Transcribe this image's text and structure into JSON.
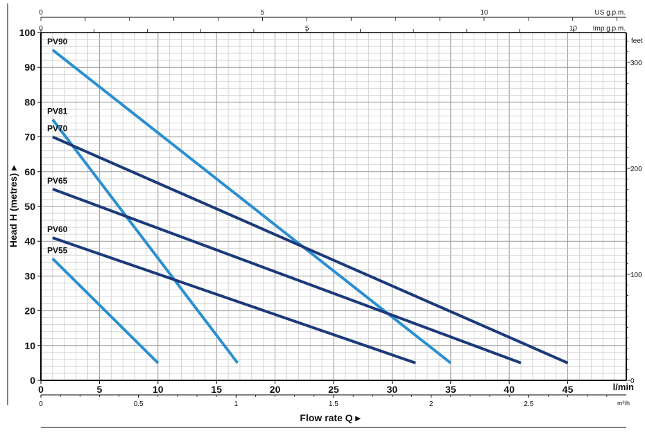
{
  "chart_data": {
    "type": "line",
    "ylabel": "Head H (metres) ▸",
    "xlabel": "Flow rate Q ▸",
    "x_unit": "l/min",
    "secondary_x_unit": "m³/h",
    "secondary_y_unit": "feet",
    "top_axis_1_label": "US g.p.m.",
    "top_axis_2_label": "Imp g.p.m.",
    "xlim": [
      0,
      50
    ],
    "ylim": [
      0,
      100
    ],
    "x_ticks": [
      0,
      5,
      10,
      15,
      20,
      25,
      30,
      35,
      40,
      45
    ],
    "x_tick_labels": [
      "0",
      "5",
      "10",
      "15",
      "20",
      "25",
      "30",
      "35",
      "40",
      "45"
    ],
    "y_ticks": [
      0,
      10,
      20,
      30,
      40,
      50,
      60,
      70,
      80,
      90,
      100
    ],
    "y_tick_labels": [
      "0",
      "10",
      "20",
      "30",
      "40",
      "50",
      "60",
      "70",
      "80",
      "90",
      "100"
    ],
    "m3h_ticks": [
      0,
      0.5,
      1,
      1.5,
      2,
      2.5
    ],
    "m3h_tick_labels": [
      "0",
      "0.5",
      "1",
      "1.5",
      "2",
      "2.5"
    ],
    "usgpm_ticks": [
      0,
      5,
      10
    ],
    "usgpm_tick_labels": [
      "0",
      "5",
      "10"
    ],
    "impgpm_ticks": [
      0,
      5,
      10
    ],
    "impgpm_tick_labels": [
      "0",
      "5",
      "10"
    ],
    "feet_ticks": [
      0,
      100,
      200,
      300
    ],
    "feet_tick_labels": [
      "0",
      "100",
      "200",
      "300"
    ],
    "grid": true,
    "series": [
      {
        "name": "PV90",
        "color": "#2a8fd0",
        "x": [
          1,
          35
        ],
        "y": [
          95,
          5
        ]
      },
      {
        "name": "PV81",
        "color": "#2a8fd0",
        "x": [
          1,
          16.8
        ],
        "y": [
          75,
          5
        ]
      },
      {
        "name": "PV70",
        "color": "#1b3a7a",
        "x": [
          1,
          45
        ],
        "y": [
          70,
          5
        ]
      },
      {
        "name": "PV65",
        "color": "#1b3a7a",
        "x": [
          1,
          41
        ],
        "y": [
          55,
          5
        ]
      },
      {
        "name": "PV60",
        "color": "#1b3a7a",
        "x": [
          1,
          32
        ],
        "y": [
          41,
          5
        ]
      },
      {
        "name": "PV55",
        "color": "#2a8fd0",
        "x": [
          1,
          10
        ],
        "y": [
          35,
          5
        ]
      }
    ]
  }
}
